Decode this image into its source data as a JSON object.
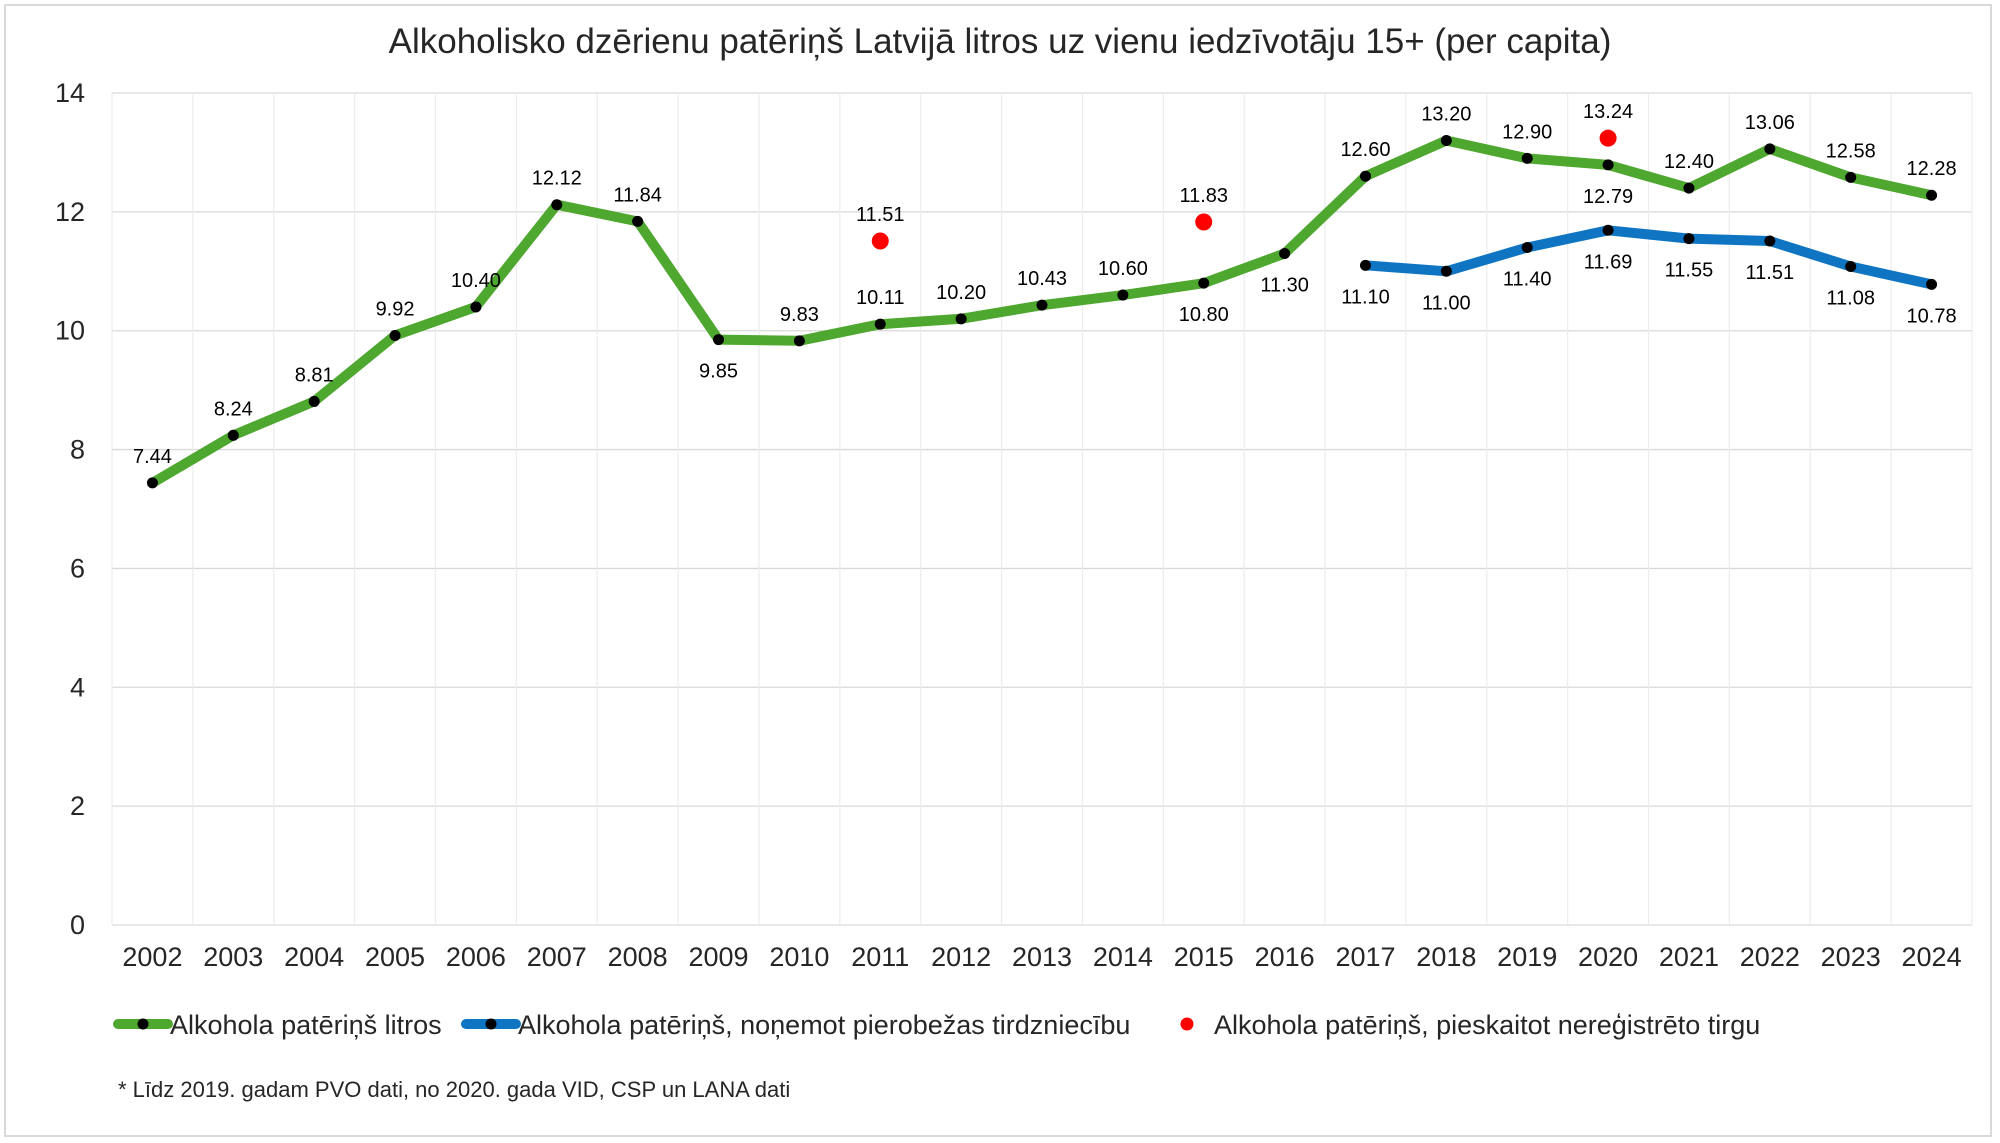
{
  "chart_data": {
    "type": "line",
    "title": "Alkoholisko dzērienu patēriņš Latvijā litros uz vienu iedzīvotāju 15+ (per capita)",
    "xlabel": "",
    "ylabel": "",
    "ylim": [
      0,
      14
    ],
    "yticks": [
      "0",
      "2",
      "4",
      "6",
      "8",
      "10",
      "12",
      "14"
    ],
    "categories": [
      "2002",
      "2003",
      "2004",
      "2005",
      "2006",
      "2007",
      "2008",
      "2009",
      "2010",
      "2011",
      "2012",
      "2013",
      "2014",
      "2015",
      "2016",
      "2017",
      "2018",
      "2019",
      "2020",
      "2021",
      "2022",
      "2023",
      "2024"
    ],
    "grid": true,
    "legend_position": "bottom",
    "series": [
      {
        "name": "Alkohola patēriņš litros",
        "color": "#4ea72e",
        "style": "line-with-markers",
        "values": [
          7.44,
          8.24,
          8.81,
          9.92,
          10.4,
          12.12,
          11.84,
          9.85,
          9.83,
          10.11,
          10.2,
          10.43,
          10.6,
          10.8,
          11.3,
          12.6,
          13.2,
          12.9,
          12.79,
          12.4,
          13.06,
          12.58,
          12.28
        ],
        "labels": [
          "7.44",
          "8.24",
          "8.81",
          "9.92",
          "10.40",
          "12.12",
          "11.84",
          "9.85",
          "9.83",
          "10.11",
          "10.20",
          "10.43",
          "10.60",
          "10.80",
          "11.30",
          "12.60",
          "13.20",
          "12.90",
          "12.79",
          "12.40",
          "13.06",
          "12.58",
          "12.28"
        ]
      },
      {
        "name": "Alkohola patēriņš, noņemot pierobežas tirdzniecību",
        "color": "#0f75c2",
        "style": "line-with-markers",
        "values": [
          null,
          null,
          null,
          null,
          null,
          null,
          null,
          null,
          null,
          null,
          null,
          null,
          null,
          null,
          null,
          11.1,
          11.0,
          11.4,
          11.69,
          11.55,
          11.51,
          11.08,
          10.78
        ],
        "labels": [
          null,
          null,
          null,
          null,
          null,
          null,
          null,
          null,
          null,
          null,
          null,
          null,
          null,
          null,
          null,
          "11.10",
          "11.00",
          "11.40",
          "11.69",
          "11.55",
          "11.51",
          "11.08",
          "10.78"
        ]
      },
      {
        "name": "Alkohola patēriņš, pieskaitot nereģistrēto tirgu",
        "color": "#ff0000",
        "style": "markers-only",
        "values": [
          null,
          null,
          null,
          null,
          null,
          null,
          null,
          null,
          null,
          11.51,
          null,
          null,
          null,
          11.83,
          null,
          null,
          null,
          null,
          13.24,
          null,
          null,
          null,
          null
        ],
        "labels": [
          null,
          null,
          null,
          null,
          null,
          null,
          null,
          null,
          null,
          "11.51",
          null,
          null,
          null,
          "11.83",
          null,
          null,
          null,
          null,
          "13.24",
          null,
          null,
          null,
          null
        ]
      }
    ],
    "footnote": "* Līdz 2019. gadam PVO dati, no 2020. gada VID, CSP un LANA dati"
  }
}
